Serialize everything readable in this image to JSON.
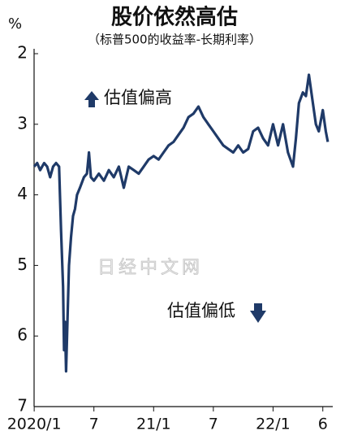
{
  "chart_data": {
    "type": "line",
    "title": "股价依然高估",
    "subtitle": "（标普500的收益率-长期利率）",
    "y_label": "%",
    "watermark": "日经中文网",
    "annotations": [
      {
        "text": "估值偏高",
        "direction": "up"
      },
      {
        "text": "估值偏低",
        "direction": "down"
      }
    ],
    "x": [
      0,
      0.3,
      0.6,
      1.0,
      1.3,
      1.6,
      1.9,
      2.2,
      2.5,
      2.7,
      2.9,
      3.0,
      3.1,
      3.2,
      3.3,
      3.4,
      3.5,
      3.7,
      3.9,
      4.1,
      4.3,
      4.6,
      5.0,
      5.3,
      5.5,
      5.7,
      6.0,
      6.5,
      7.0,
      7.5,
      8.0,
      8.5,
      9.0,
      9.5,
      10.0,
      10.5,
      11.0,
      11.5,
      12.0,
      12.5,
      13.0,
      13.5,
      14.0,
      14.5,
      15.0,
      15.5,
      16.0,
      16.5,
      17.0,
      17.5,
      18.0,
      18.5,
      19.0,
      19.5,
      20.0,
      20.5,
      21.0,
      21.5,
      22.0,
      22.5,
      23.0,
      23.5,
      24.0,
      24.5,
      25.0,
      25.5,
      26.0,
      26.3,
      26.6,
      27.0,
      27.3,
      27.6,
      28.0,
      28.3,
      28.6,
      29.0,
      29.3,
      29.5
    ],
    "series": [
      {
        "name": "收益率-长期利率",
        "color": "#1f3a68",
        "values": [
          3.6,
          3.55,
          3.65,
          3.55,
          3.6,
          3.75,
          3.6,
          3.55,
          3.6,
          4.5,
          5.3,
          6.2,
          5.8,
          6.5,
          6.0,
          5.5,
          5.0,
          4.6,
          4.3,
          4.2,
          4.0,
          3.9,
          3.75,
          3.7,
          3.4,
          3.75,
          3.8,
          3.7,
          3.8,
          3.65,
          3.75,
          3.6,
          3.9,
          3.6,
          3.65,
          3.7,
          3.6,
          3.5,
          3.45,
          3.5,
          3.4,
          3.3,
          3.25,
          3.15,
          3.05,
          2.9,
          2.85,
          2.75,
          2.9,
          3.0,
          3.1,
          3.2,
          3.3,
          3.35,
          3.4,
          3.3,
          3.4,
          3.35,
          3.1,
          3.05,
          3.2,
          3.3,
          3.0,
          3.3,
          3.0,
          3.4,
          3.6,
          3.2,
          2.7,
          2.55,
          2.6,
          2.3,
          2.7,
          3.0,
          3.1,
          2.8,
          3.1,
          3.25
        ]
      }
    ],
    "xlim": [
      -0.5,
      30
    ],
    "ylim": [
      7,
      2
    ],
    "y_inverted": true,
    "xticks": [
      {
        "value": 0,
        "label": "2020/1"
      },
      {
        "value": 6,
        "label": "7"
      },
      {
        "value": 12,
        "label": "21/1"
      },
      {
        "value": 18,
        "label": "7"
      },
      {
        "value": 24,
        "label": "22/1"
      },
      {
        "value": 29,
        "label": "6"
      }
    ],
    "yticks": [
      2,
      3,
      4,
      5,
      6,
      7
    ]
  }
}
